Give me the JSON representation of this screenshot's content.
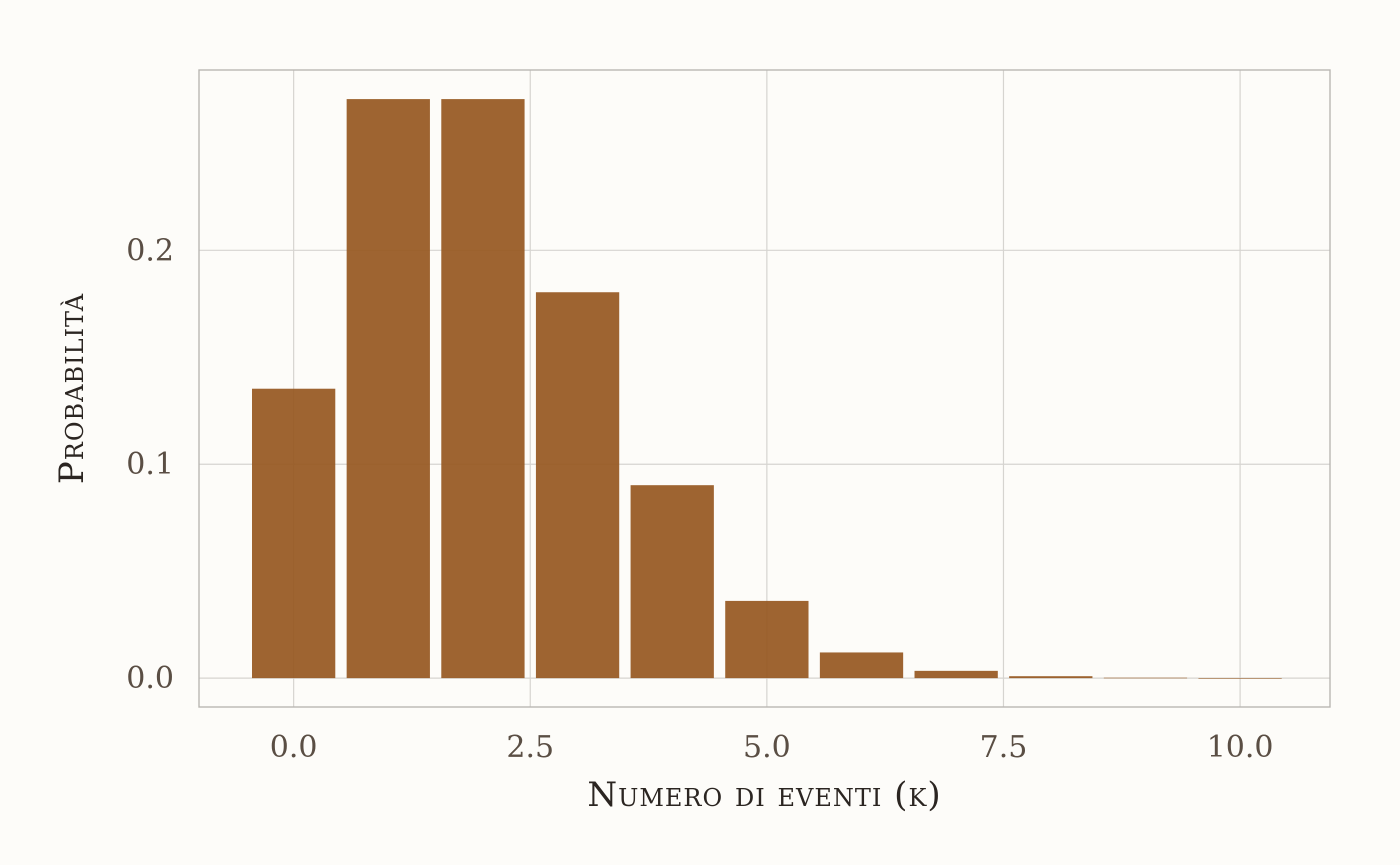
{
  "chart_data": {
    "type": "bar",
    "xlabel": "Numero di eventi (k)",
    "ylabel": "Probabilità",
    "x": [
      0,
      1,
      2,
      3,
      4,
      5,
      6,
      7,
      8,
      9,
      10
    ],
    "values": [
      0.1353,
      0.2707,
      0.2707,
      0.1804,
      0.0902,
      0.0361,
      0.012,
      0.0034,
      0.0009,
      0.0002,
      4e-05
    ],
    "xlim": [
      -1.0,
      10.95
    ],
    "ylim": [
      -0.0135,
      0.2843
    ],
    "x_ticks": [
      0.0,
      2.5,
      5.0,
      7.5,
      10.0
    ],
    "x_tick_labels": [
      "0.0",
      "2.5",
      "5.0",
      "7.5",
      "10.0"
    ],
    "y_ticks": [
      0.0,
      0.1,
      0.2
    ],
    "y_tick_labels": [
      "0.0",
      "0.1",
      "0.2"
    ],
    "grid": true,
    "colors": {
      "bar": "#96571f",
      "background": "#fdfcf9",
      "grid": "#d6d4d0",
      "text": "#5a4e44"
    }
  }
}
